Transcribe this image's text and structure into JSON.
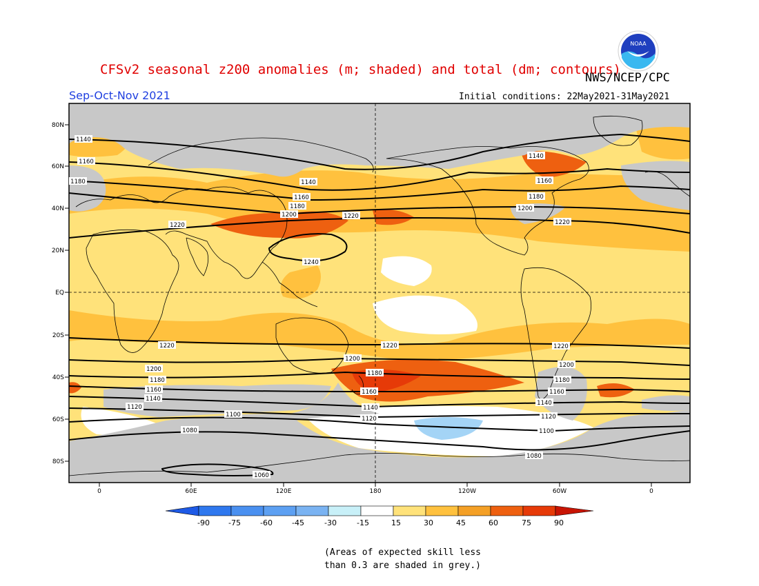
{
  "header": {
    "title": "CFSv2 seasonal z200 anomalies (m; shaded) and total (dm; contours)",
    "organization": "NWS/NCEP/CPC",
    "season": "Sep-Oct-Nov 2021",
    "initial_conditions": "Initial conditions: 22May2021-31May2021",
    "logo_text": "NOAA"
  },
  "map": {
    "lat_labels": [
      "80N",
      "60N",
      "40N",
      "20N",
      "EQ",
      "20S",
      "40S",
      "60S",
      "80S"
    ],
    "lon_labels": [
      "0",
      "60E",
      "120E",
      "180",
      "120W",
      "60W",
      "0"
    ],
    "contour_labels": [
      "1140",
      "1160",
      "1180",
      "1220",
      "1140",
      "1160",
      "1180",
      "1200",
      "1220",
      "1240",
      "1140",
      "1160",
      "1180",
      "1200",
      "1220",
      "1220",
      "1220",
      "1220",
      "1200",
      "1200",
      "1200",
      "1180",
      "1180",
      "1180",
      "1160",
      "1160",
      "1160",
      "1140",
      "1140",
      "1140",
      "1120",
      "1120",
      "1120",
      "1100",
      "1100",
      "1080",
      "1080",
      "1060"
    ],
    "colors": {
      "grey": "#c8c8c8",
      "ocean_bg": "#ffe27a"
    }
  },
  "colorbar": {
    "tick_labels": [
      "-90",
      "-75",
      "-60",
      "-45",
      "-30",
      "-15",
      "15",
      "30",
      "45",
      "60",
      "75",
      "90"
    ],
    "colors": [
      "#1e5ae6",
      "#2f78ee",
      "#4a90f0",
      "#7ab3f2",
      "#a4d4f6",
      "#c8f0f8",
      "#ffffff",
      "#ffe27a",
      "#ffc13e",
      "#f4a026",
      "#ee6010",
      "#e63a08",
      "#c81404"
    ]
  },
  "footnote": {
    "line1": "(Areas of expected skill less",
    "line2": "than 0.3 are shaded in grey.)"
  }
}
